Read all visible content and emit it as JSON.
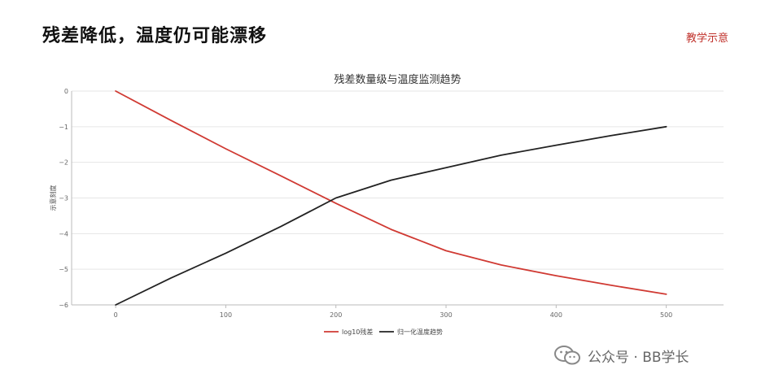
{
  "header": {
    "title": "残差降低，温度仍可能漂移",
    "tag": "教学示意"
  },
  "watermark": {
    "text": "公众号 · BB学长",
    "icon": "wechat-icon"
  },
  "chart_data": {
    "type": "line",
    "title": "残差数量级与温度监测趋势",
    "xlabel": "",
    "ylabel": "示意刻度",
    "xlim": [
      -40,
      552
    ],
    "ylim": [
      -6,
      0
    ],
    "xticks": [
      0,
      100,
      200,
      300,
      400,
      500
    ],
    "yticks": [
      0,
      -1,
      -2,
      -3,
      -4,
      -5,
      -6
    ],
    "grid": true,
    "legend": "bottom-center",
    "series": [
      {
        "name": "log10残差",
        "color": "#d03a33",
        "x": [
          0,
          50,
          100,
          150,
          200,
          250,
          300,
          350,
          400,
          450,
          500
        ],
        "y": [
          0,
          -0.82,
          -1.62,
          -2.38,
          -3.15,
          -3.88,
          -4.48,
          -4.88,
          -5.18,
          -5.45,
          -5.7
        ]
      },
      {
        "name": "归一化温度趋势",
        "color": "#222222",
        "x": [
          0,
          50,
          100,
          150,
          200,
          250,
          300,
          350,
          400,
          450,
          500
        ],
        "y": [
          -6,
          -5.25,
          -4.55,
          -3.8,
          -3.0,
          -2.5,
          -2.15,
          -1.8,
          -1.52,
          -1.25,
          -1.0
        ]
      }
    ]
  }
}
